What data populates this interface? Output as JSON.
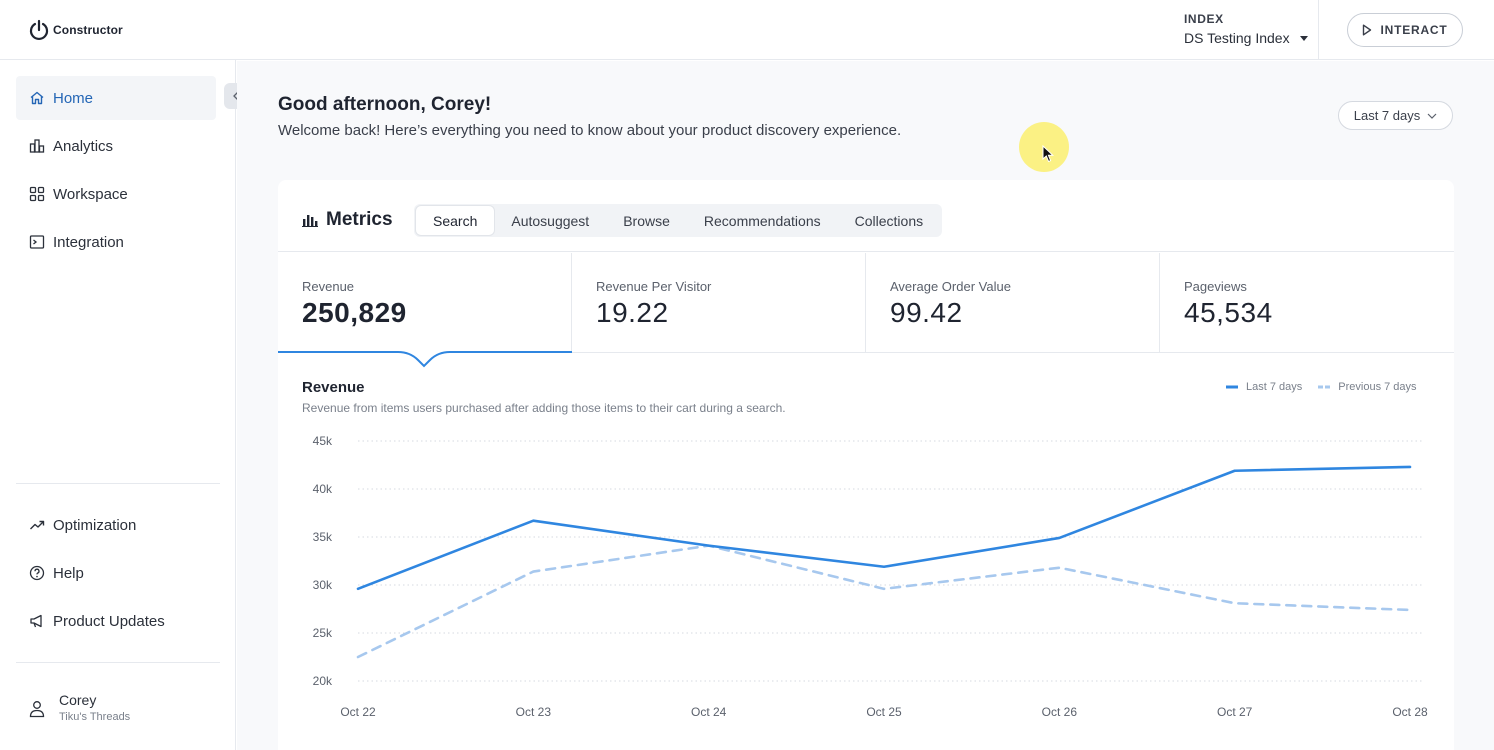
{
  "app": {
    "logo_text": "Constructor"
  },
  "header": {
    "index_label": "INDEX",
    "index_value": "DS Testing Index",
    "interact_label": "INTERACT"
  },
  "sidebar": {
    "items": [
      {
        "label": "Home",
        "icon": "home-icon",
        "active": true
      },
      {
        "label": "Analytics",
        "icon": "analytics-icon"
      },
      {
        "label": "Workspace",
        "icon": "workspace-icon"
      },
      {
        "label": "Integration",
        "icon": "integration-icon"
      }
    ],
    "bottom_items": [
      {
        "label": "Optimization",
        "icon": "trending-icon"
      },
      {
        "label": "Help",
        "icon": "help-icon"
      },
      {
        "label": "Product Updates",
        "icon": "megaphone-icon"
      }
    ],
    "user": {
      "name": "Corey",
      "org": "Tiku's Threads"
    }
  },
  "main": {
    "greeting": "Good afternoon, Corey!",
    "welcome": "Welcome back! Here’s everything you need to know about your product discovery experience.",
    "date_range": "Last 7 days"
  },
  "metrics": {
    "title": "Metrics",
    "tabs": [
      "Search",
      "Autosuggest",
      "Browse",
      "Recommendations",
      "Collections"
    ],
    "active_tab": "Search",
    "stats": [
      {
        "label": "Revenue",
        "value": "250,829"
      },
      {
        "label": "Revenue Per Visitor",
        "value": "19.22"
      },
      {
        "label": "Average Order Value",
        "value": "99.42"
      },
      {
        "label": "Pageviews",
        "value": "45,534"
      }
    ]
  },
  "chart": {
    "title": "Revenue",
    "subtitle": "Revenue from items users purchased after adding those items to their cart during a search."
  },
  "colors": {
    "accent": "#2f86e0",
    "previous": "#a7c8ee",
    "active_nav": "#2466b6"
  },
  "chart_data": {
    "type": "line",
    "title": "Revenue",
    "x": [
      "Oct 22",
      "Oct 23",
      "Oct 24",
      "Oct 25",
      "Oct 26",
      "Oct 27",
      "Oct 28"
    ],
    "series": [
      {
        "name": "Last 7 days",
        "values": [
          29600,
          36700,
          34100,
          31900,
          34900,
          41900,
          42300
        ],
        "style": "solid"
      },
      {
        "name": "Previous 7 days",
        "values": [
          22500,
          31400,
          34100,
          29600,
          31800,
          28100,
          27400
        ],
        "style": "dashed"
      }
    ],
    "yticks": [
      "45k",
      "40k",
      "35k",
      "30k",
      "25k",
      "20k"
    ],
    "ylim": [
      20000,
      45000
    ],
    "grid": true,
    "legend": "top-right"
  }
}
